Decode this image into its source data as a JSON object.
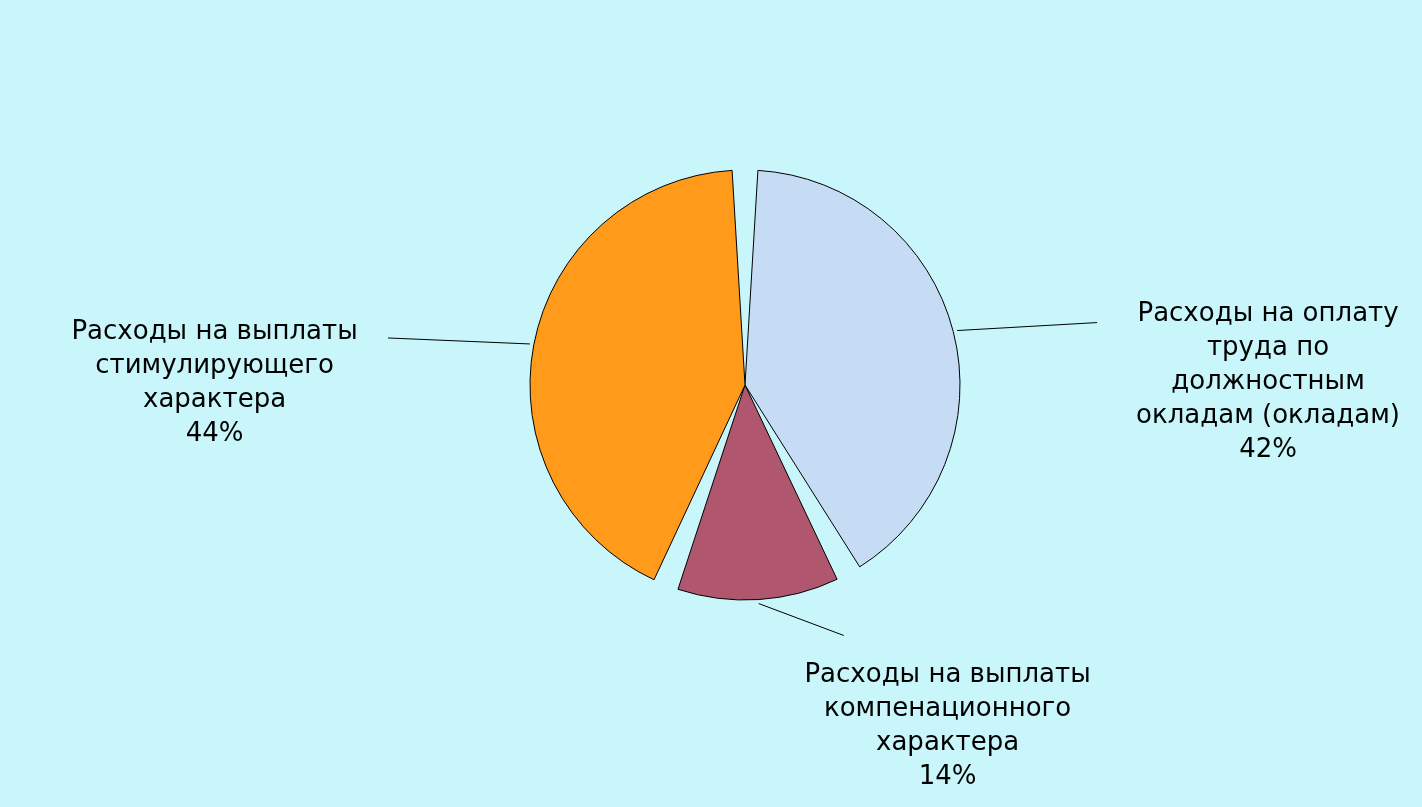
{
  "chart_data": {
    "type": "pie",
    "categories": [
      "Расходы на оплату труда по должностным окладам (окладам)",
      "Расходы на выплаты компенационного характера",
      "Расходы на выплаты стимулирующего характера"
    ],
    "values": [
      42,
      14,
      44
    ],
    "colors": [
      "#c6dcf5",
      "#b0566e",
      "#ff9a1a"
    ],
    "value_labels": [
      "42%",
      "14%",
      "44%"
    ]
  }
}
